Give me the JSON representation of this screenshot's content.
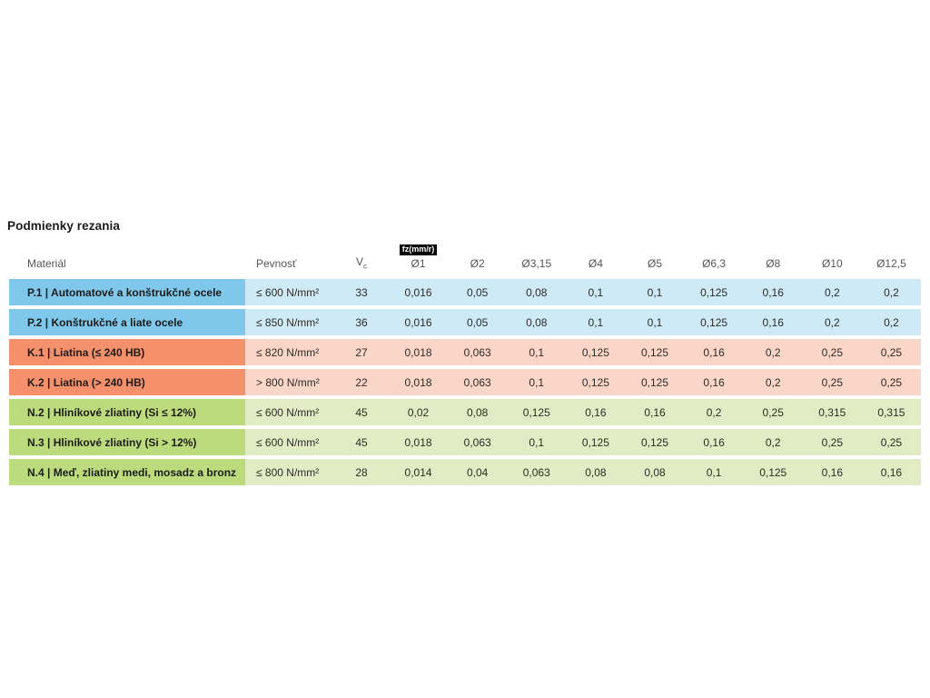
{
  "title": "Podmienky rezania",
  "colors": {
    "blue_label": "#7fc8ec",
    "blue_cell": "#cfeaf7",
    "orange_label": "#f4906b",
    "orange_cell": "#fad6c8",
    "green_label": "#bcdb7d",
    "green_cell": "#e1ecc5",
    "badge_bg": "#000000",
    "badge_text": "#ffffff",
    "header_text": "#54565b",
    "body_text": "#2e2a25"
  },
  "header": {
    "material": "Materiál",
    "strength": "Pevnosť",
    "vc_base": "V",
    "vc_sub": "c",
    "fz_badge": "fz(mm/r)",
    "diameters": [
      "Ø1",
      "Ø2",
      "Ø3,15",
      "Ø4",
      "Ø5",
      "Ø6,3",
      "Ø8",
      "Ø10",
      "Ø12,5"
    ]
  },
  "rows": [
    {
      "material": "P.1 | Automatové a konštrukčné ocele",
      "strength": "≤ 600 N/mm²",
      "vc": "33",
      "values": [
        "0,016",
        "0,05",
        "0,08",
        "0,1",
        "0,1",
        "0,125",
        "0,16",
        "0,2",
        "0,2"
      ],
      "color": "blue"
    },
    {
      "material": "P.2 | Konštrukčné a liate ocele",
      "strength": "≤ 850 N/mm²",
      "vc": "36",
      "values": [
        "0,016",
        "0,05",
        "0,08",
        "0,1",
        "0,1",
        "0,125",
        "0,16",
        "0,2",
        "0,2"
      ],
      "color": "blue"
    },
    {
      "material": "K.1 | Liatina (≤ 240 HB)",
      "strength": "≤ 820 N/mm²",
      "vc": "27",
      "values": [
        "0,018",
        "0,063",
        "0,1",
        "0,125",
        "0,125",
        "0,16",
        "0,2",
        "0,25",
        "0,25"
      ],
      "color": "orange"
    },
    {
      "material": "K.2 | Liatina (> 240 HB)",
      "strength": "> 800 N/mm²",
      "vc": "22",
      "values": [
        "0,018",
        "0,063",
        "0,1",
        "0,125",
        "0,125",
        "0,16",
        "0,2",
        "0,25",
        "0,25"
      ],
      "color": "orange"
    },
    {
      "material": "N.2 | Hliníkové zliatiny (Si ≤ 12%)",
      "strength": "≤ 600 N/mm²",
      "vc": "45",
      "values": [
        "0,02",
        "0,08",
        "0,125",
        "0,16",
        "0,16",
        "0,2",
        "0,25",
        "0,315",
        "0,315"
      ],
      "color": "green"
    },
    {
      "material": "N.3 | Hliníkové zliatiny (Si > 12%)",
      "strength": "≤ 600 N/mm²",
      "vc": "45",
      "values": [
        "0,018",
        "0,063",
        "0,1",
        "0,125",
        "0,125",
        "0,16",
        "0,2",
        "0,25",
        "0,25"
      ],
      "color": "green"
    },
    {
      "material": "N.4 | Meď, zliatiny medi, mosadz a bronz",
      "strength": "≤ 800 N/mm²",
      "vc": "28",
      "values": [
        "0,014",
        "0,04",
        "0,063",
        "0,08",
        "0,08",
        "0,1",
        "0,125",
        "0,16",
        "0,16"
      ],
      "color": "green"
    }
  ],
  "chart_data": {
    "type": "table",
    "title": "Podmienky rezania",
    "columns": [
      "Materiál",
      "Pevnosť",
      "Vc",
      "fz(mm/r) Ø1",
      "Ø2",
      "Ø3,15",
      "Ø4",
      "Ø5",
      "Ø6,3",
      "Ø8",
      "Ø10",
      "Ø12,5"
    ],
    "rows": [
      [
        "P.1 | Automatové a konštrukčné ocele",
        "≤ 600 N/mm²",
        33,
        0.016,
        0.05,
        0.08,
        0.1,
        0.1,
        0.125,
        0.16,
        0.2,
        0.2
      ],
      [
        "P.2 | Konštrukčné a liate ocele",
        "≤ 850 N/mm²",
        36,
        0.016,
        0.05,
        0.08,
        0.1,
        0.1,
        0.125,
        0.16,
        0.2,
        0.2
      ],
      [
        "K.1 | Liatina (≤ 240 HB)",
        "≤ 820 N/mm²",
        27,
        0.018,
        0.063,
        0.1,
        0.125,
        0.125,
        0.16,
        0.2,
        0.25,
        0.25
      ],
      [
        "K.2 | Liatina (> 240 HB)",
        "> 800 N/mm²",
        22,
        0.018,
        0.063,
        0.1,
        0.125,
        0.125,
        0.16,
        0.2,
        0.25,
        0.25
      ],
      [
        "N.2 | Hliníkové zliatiny (Si ≤ 12%)",
        "≤ 600 N/mm²",
        45,
        0.02,
        0.08,
        0.125,
        0.16,
        0.16,
        0.2,
        0.25,
        0.315,
        0.315
      ],
      [
        "N.3 | Hliníkové zliatiny (Si > 12%)",
        "≤ 600 N/mm²",
        45,
        0.018,
        0.063,
        0.1,
        0.125,
        0.125,
        0.16,
        0.2,
        0.25,
        0.25
      ],
      [
        "N.4 | Meď, zliatiny medi, mosadz a bronz",
        "≤ 800 N/mm²",
        28,
        0.014,
        0.04,
        0.063,
        0.08,
        0.08,
        0.1,
        0.125,
        0.16,
        0.16
      ]
    ],
    "row_group_colors": {
      "P": "#7fc8ec",
      "K": "#f4906b",
      "N": "#bcdb7d"
    },
    "layout": "row labels left, numeric fz values centered, grouped row coloring by ISO material class"
  }
}
